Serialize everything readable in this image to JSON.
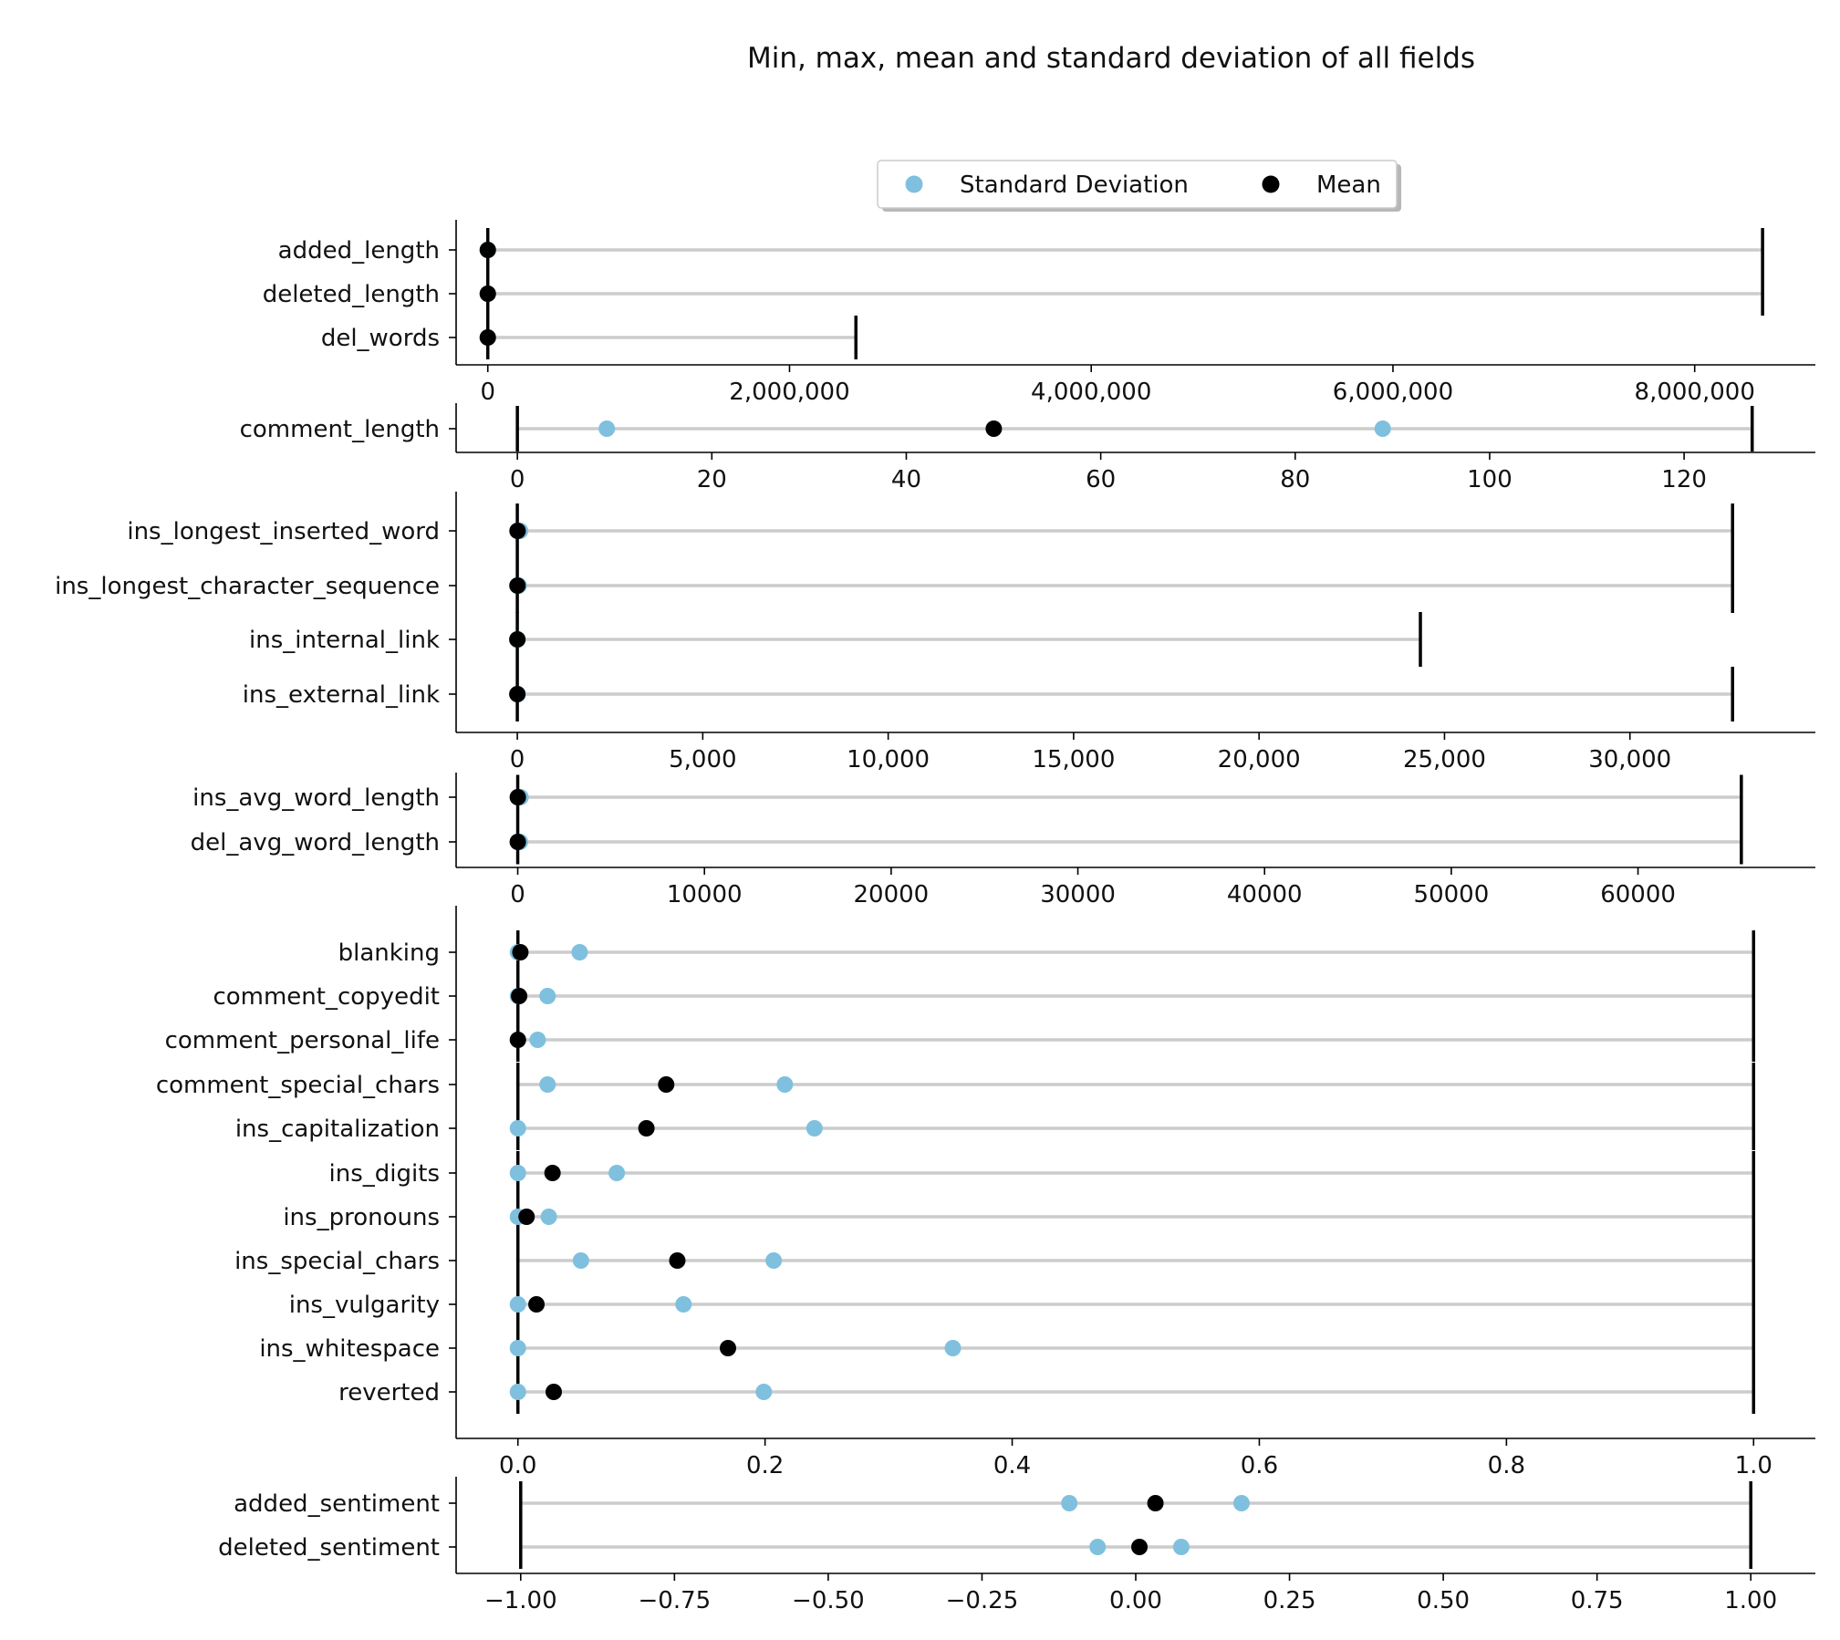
{
  "colors": {
    "std": "#7fc0de",
    "mean": "#000000",
    "range": "#cccccc",
    "minmax": "#000000"
  },
  "chart_data": {
    "type": "dot-range",
    "title": "Min, max, mean and standard deviation of all fields",
    "legend": {
      "placement": "top-center",
      "entries": [
        {
          "label": "Standard Deviation",
          "marker": "std"
        },
        {
          "label": "Mean",
          "marker": "mean"
        }
      ]
    },
    "panels": [
      {
        "xlim": [
          -210000,
          8800000
        ],
        "ticks": [
          0,
          2000000,
          4000000,
          6000000,
          8000000
        ],
        "tick_labels": [
          "0",
          "2,000,000",
          "4,000,000",
          "6,000,000",
          "8,000,000"
        ],
        "rows": [
          {
            "label": "added_length",
            "min": 0,
            "max": 8450000,
            "mean": 0,
            "std_low": 0,
            "std_high": 0
          },
          {
            "label": "deleted_length",
            "min": 0,
            "max": 8450000,
            "mean": 0,
            "std_low": 0,
            "std_high": 0
          },
          {
            "label": "del_words",
            "min": 0,
            "max": 2440000,
            "mean": 0,
            "std_low": 0,
            "std_high": 0
          }
        ]
      },
      {
        "xlim": [
          -6.3,
          133.5
        ],
        "ticks": [
          0,
          20,
          40,
          60,
          80,
          100,
          120
        ],
        "tick_labels": [
          "0",
          "20",
          "40",
          "60",
          "80",
          "100",
          "120"
        ],
        "rows": [
          {
            "label": "comment_length",
            "min": 0,
            "max": 127,
            "mean": 49,
            "std_low": 9.2,
            "std_high": 89
          }
        ]
      },
      {
        "xlim": [
          -1650,
          35000
        ],
        "ticks": [
          0,
          5000,
          10000,
          15000,
          20000,
          25000,
          30000
        ],
        "tick_labels": [
          "0",
          "5,000",
          "10,000",
          "15,000",
          "20,000",
          "25,000",
          "30,000"
        ],
        "rows": [
          {
            "label": "ins_longest_inserted_word",
            "min": 0,
            "max": 32767,
            "mean": 8,
            "std_low": 0,
            "std_high": 75
          },
          {
            "label": "ins_longest_character_sequence",
            "min": 0,
            "max": 32767,
            "mean": 5,
            "std_low": 0,
            "std_high": 40
          },
          {
            "label": "ins_internal_link",
            "min": 0,
            "max": 24350,
            "mean": 1,
            "std_low": 0,
            "std_high": 10
          },
          {
            "label": "ins_external_link",
            "min": 0,
            "max": 32767,
            "mean": 1,
            "std_low": 0,
            "std_high": 10
          }
        ]
      },
      {
        "xlim": [
          -3300,
          69500
        ],
        "ticks": [
          0,
          10000,
          20000,
          30000,
          40000,
          50000,
          60000
        ],
        "tick_labels": [
          "0",
          "10000",
          "20000",
          "30000",
          "40000",
          "50000",
          "60000"
        ],
        "rows": [
          {
            "label": "ins_avg_word_length",
            "min": 0,
            "max": 65535,
            "mean": 5,
            "std_low": 0,
            "std_high": 150
          },
          {
            "label": "del_avg_word_length",
            "min": 0,
            "max": 65535,
            "mean": 3,
            "std_low": 0,
            "std_high": 120
          }
        ]
      },
      {
        "xlim": [
          -0.05,
          1.05
        ],
        "ticks": [
          0.0,
          0.2,
          0.4,
          0.6,
          0.8,
          1.0
        ],
        "tick_labels": [
          "0.0",
          "0.2",
          "0.4",
          "0.6",
          "0.8",
          "1.0"
        ],
        "rows": [
          {
            "label": "blanking",
            "min": 0,
            "max": 1,
            "mean": 0.002,
            "std_low": 0.0,
            "std_high": 0.05
          },
          {
            "label": "comment_copyedit",
            "min": 0,
            "max": 1,
            "mean": 0.001,
            "std_low": 0.0,
            "std_high": 0.024
          },
          {
            "label": "comment_personal_life",
            "min": 0,
            "max": 1,
            "mean": 0.0,
            "std_low": 0.0,
            "std_high": 0.016
          },
          {
            "label": "comment_special_chars",
            "min": 0,
            "max": 1,
            "mean": 0.12,
            "std_low": 0.024,
            "std_high": 0.216
          },
          {
            "label": "ins_capitalization",
            "min": 0,
            "max": 1,
            "mean": 0.104,
            "std_low": 0.0,
            "std_high": 0.24
          },
          {
            "label": "ins_digits",
            "min": 0,
            "max": 1,
            "mean": 0.028,
            "std_low": 0.0,
            "std_high": 0.08
          },
          {
            "label": "ins_pronouns",
            "min": 0,
            "max": 1,
            "mean": 0.007,
            "std_low": 0.0,
            "std_high": 0.025
          },
          {
            "label": "ins_special_chars",
            "min": 0,
            "max": 1,
            "mean": 0.129,
            "std_low": 0.051,
            "std_high": 0.207
          },
          {
            "label": "ins_vulgarity",
            "min": 0,
            "max": 1,
            "mean": 0.015,
            "std_low": 0.0,
            "std_high": 0.134
          },
          {
            "label": "ins_whitespace",
            "min": 0,
            "max": 1,
            "mean": 0.17,
            "std_low": 0.0,
            "std_high": 0.352
          },
          {
            "label": "reverted",
            "min": 0,
            "max": 1,
            "mean": 0.029,
            "std_low": 0.0,
            "std_high": 0.199
          }
        ]
      },
      {
        "xlim": [
          -1.105,
          1.105
        ],
        "ticks": [
          -1.0,
          -0.75,
          -0.5,
          -0.25,
          0.0,
          0.25,
          0.5,
          0.75,
          1.0
        ],
        "tick_labels": [
          "−1.00",
          "−0.75",
          "−0.50",
          "−0.25",
          "0.00",
          "0.25",
          "0.50",
          "0.75",
          "1.00"
        ],
        "rows": [
          {
            "label": "added_sentiment",
            "min": -1,
            "max": 1,
            "mean": 0.032,
            "std_low": -0.108,
            "std_high": 0.172
          },
          {
            "label": "deleted_sentiment",
            "min": -1,
            "max": 1,
            "mean": 0.006,
            "std_low": -0.062,
            "std_high": 0.074
          }
        ]
      }
    ]
  }
}
